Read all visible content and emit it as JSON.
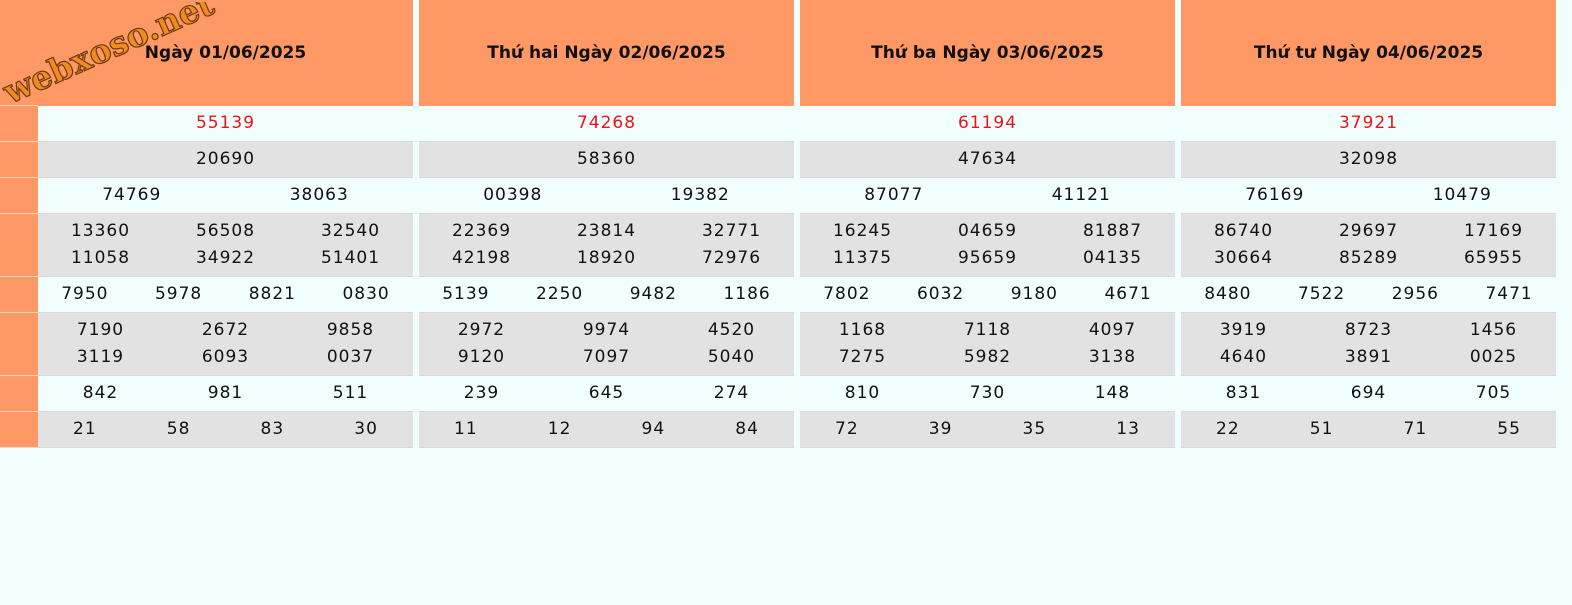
{
  "brand": {
    "logo_text": "webxoso.net"
  },
  "columns": [
    {
      "header": "Ngày 01/06/2025",
      "prizes": [
        [
          "55139"
        ],
        [
          "20690"
        ],
        [
          "74769",
          "38063"
        ],
        [
          "13360",
          "56508",
          "32540",
          "11058",
          "34922",
          "51401"
        ],
        [
          "7950",
          "5978",
          "8821",
          "0830"
        ],
        [
          "7190",
          "2672",
          "9858",
          "3119",
          "6093",
          "0037"
        ],
        [
          "842",
          "981",
          "511"
        ],
        [
          "21",
          "58",
          "83",
          "30"
        ]
      ]
    },
    {
      "header": "Thứ hai Ngày 02/06/2025",
      "prizes": [
        [
          "74268"
        ],
        [
          "58360"
        ],
        [
          "00398",
          "19382"
        ],
        [
          "22369",
          "23814",
          "32771",
          "42198",
          "18920",
          "72976"
        ],
        [
          "5139",
          "2250",
          "9482",
          "1186"
        ],
        [
          "2972",
          "9974",
          "4520",
          "9120",
          "7097",
          "5040"
        ],
        [
          "239",
          "645",
          "274"
        ],
        [
          "11",
          "12",
          "94",
          "84"
        ]
      ]
    },
    {
      "header": "Thứ ba Ngày 03/06/2025",
      "prizes": [
        [
          "61194"
        ],
        [
          "47634"
        ],
        [
          "87077",
          "41121"
        ],
        [
          "16245",
          "04659",
          "81887",
          "11375",
          "95659",
          "04135"
        ],
        [
          "7802",
          "6032",
          "9180",
          "4671"
        ],
        [
          "1168",
          "7118",
          "4097",
          "7275",
          "5982",
          "3138"
        ],
        [
          "810",
          "730",
          "148"
        ],
        [
          "72",
          "39",
          "35",
          "13"
        ]
      ]
    },
    {
      "header": "Thứ tư Ngày 04/06/2025",
      "prizes": [
        [
          "37921"
        ],
        [
          "32098"
        ],
        [
          "76169",
          "10479"
        ],
        [
          "86740",
          "29697",
          "17169",
          "30664",
          "85289",
          "65955"
        ],
        [
          "8480",
          "7522",
          "2956",
          "7471"
        ],
        [
          "3919",
          "8723",
          "1456",
          "4640",
          "3891",
          "0025"
        ],
        [
          "831",
          "694",
          "705"
        ],
        [
          "22",
          "51",
          "71",
          "55"
        ]
      ]
    }
  ],
  "colors": {
    "header_bg": "#fe9966",
    "special_prize": "#e8141b",
    "row_light": "#f0fffe",
    "row_gray": "#e2e2e2",
    "logo": "#f28a1e"
  }
}
